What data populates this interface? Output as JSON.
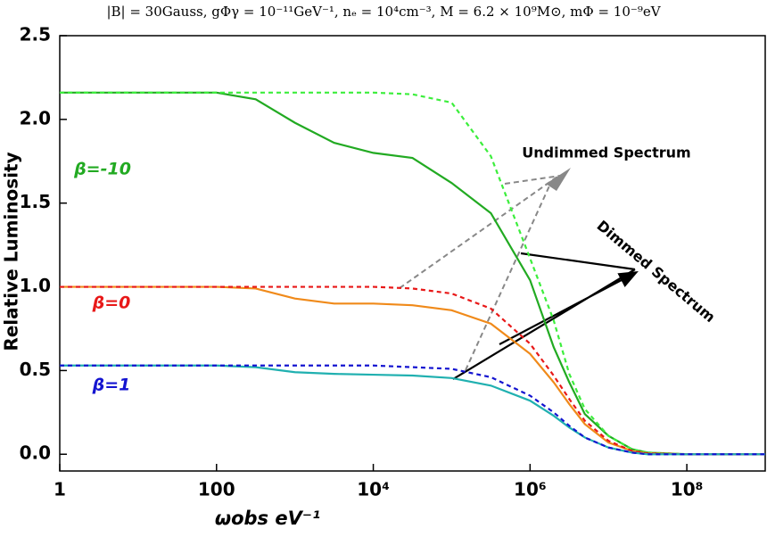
{
  "chart_data": {
    "type": "line",
    "title": "|B| = 30Gauss, gΦγ = 10⁻¹¹GeV⁻¹, nₑ = 10⁴cm⁻³, M = 6.2 × 10⁹M⊙, mΦ = 10⁻⁹eV",
    "x_label": "ωobs eV⁻¹",
    "y_label": "Relative Luminosity",
    "xscale": "log",
    "xlim": [
      1,
      1000000000
    ],
    "xticks": [
      1,
      100,
      {
        "value": 10000,
        "label": "10⁴"
      },
      {
        "value": 1000000,
        "label": "10⁶"
      },
      {
        "value": 100000000,
        "label": "10⁸"
      }
    ],
    "ylim": [
      -0.1,
      2.5
    ],
    "yticks": [
      {
        "value": 0,
        "label": "0.0"
      },
      0.5,
      {
        "value": 1,
        "label": "1.0"
      },
      1.5,
      {
        "value": 2,
        "label": "2.0"
      },
      2.5
    ],
    "grid": false,
    "x": [
      1,
      10,
      100,
      316,
      1000,
      3162,
      10000,
      31623,
      100000,
      316228,
      1000000,
      2000000,
      3162278,
      5000000,
      10000000,
      20000000,
      31622777,
      100000000,
      1000000000
    ],
    "series": [
      {
        "name": "β=-10",
        "color": "#22aa22",
        "style": "solid",
        "values": [
          2.16,
          2.16,
          2.16,
          2.12,
          1.98,
          1.86,
          1.8,
          1.77,
          1.62,
          1.44,
          1.04,
          0.64,
          0.43,
          0.24,
          0.11,
          0.03,
          0.01,
          0,
          0
        ]
      },
      {
        "name": "β=-10 undimmed",
        "color": "#3cee3c",
        "style": "dashed",
        "values": [
          2.16,
          2.16,
          2.16,
          2.16,
          2.16,
          2.16,
          2.16,
          2.15,
          2.1,
          1.78,
          1.17,
          0.8,
          0.48,
          0.27,
          0.11,
          0.03,
          0.01,
          0,
          0
        ]
      },
      {
        "name": "β=0",
        "color": "#f08a1a",
        "style": "solid",
        "values": [
          1,
          1,
          1,
          0.99,
          0.93,
          0.9,
          0.9,
          0.89,
          0.86,
          0.78,
          0.6,
          0.43,
          0.3,
          0.18,
          0.07,
          0.02,
          0.005,
          0,
          0
        ]
      },
      {
        "name": "β=0 undimmed",
        "color": "#e81818",
        "style": "dashed",
        "values": [
          1,
          1,
          1,
          1,
          1,
          1,
          1,
          0.99,
          0.96,
          0.87,
          0.66,
          0.47,
          0.33,
          0.2,
          0.08,
          0.02,
          0.005,
          0,
          0
        ]
      },
      {
        "name": "β=1",
        "color": "#20b0b0",
        "style": "solid",
        "values": [
          0.53,
          0.53,
          0.53,
          0.52,
          0.49,
          0.48,
          0.475,
          0.47,
          0.455,
          0.41,
          0.32,
          0.23,
          0.16,
          0.1,
          0.04,
          0.01,
          0,
          0,
          0
        ]
      },
      {
        "name": "β=1 undimmed",
        "color": "#1414d0",
        "style": "dashed",
        "values": [
          0.53,
          0.53,
          0.53,
          0.53,
          0.53,
          0.53,
          0.53,
          0.52,
          0.51,
          0.46,
          0.35,
          0.25,
          0.17,
          0.1,
          0.04,
          0.01,
          0,
          0,
          0
        ]
      }
    ],
    "labels": [
      {
        "text": "β=-10",
        "color": "#22aa22"
      },
      {
        "text": "β=0",
        "color": "#e81818"
      },
      {
        "text": "β=1",
        "color": "#1414d0"
      }
    ],
    "annotations": [
      "Undimmed Spectrum",
      "Dimmed Spectrum"
    ]
  }
}
